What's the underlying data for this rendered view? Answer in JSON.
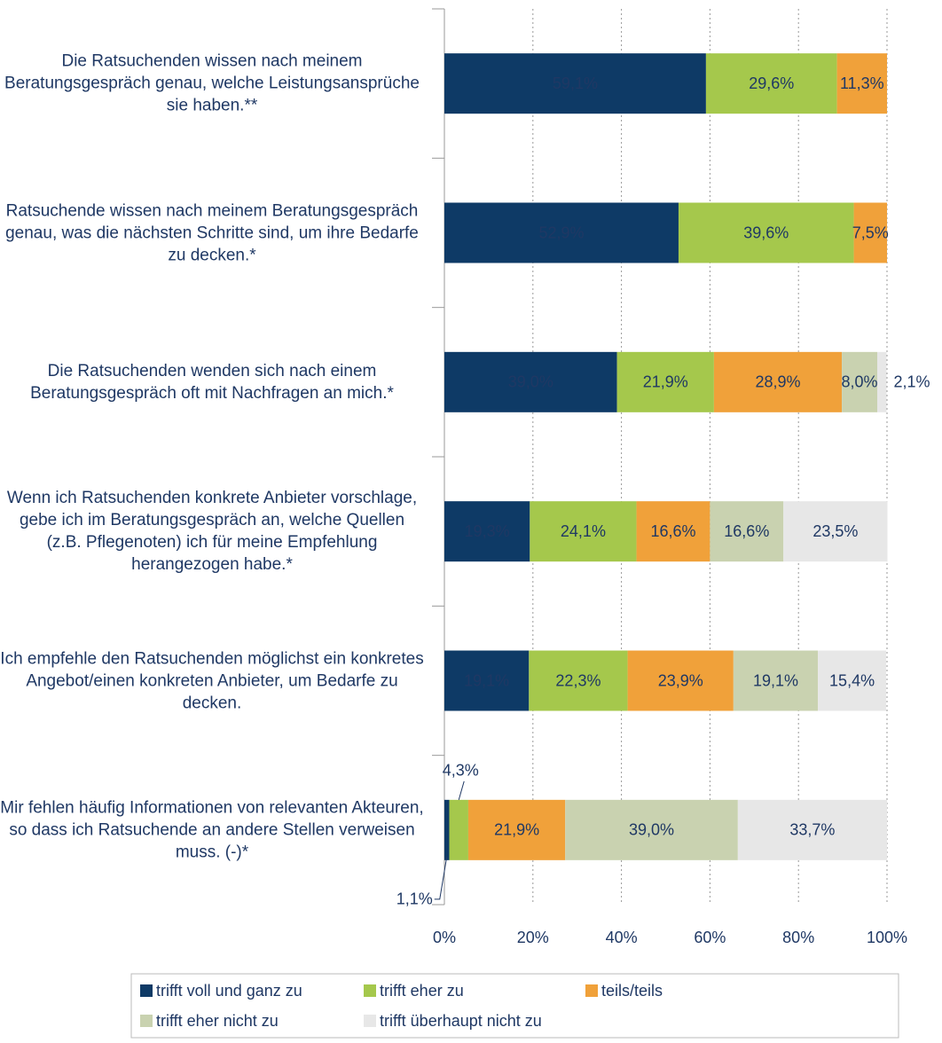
{
  "chart_data": {
    "type": "stacked-bar-horizontal",
    "categories": [
      "Die Ratsuchenden wissen nach meinem Beratungsgespräch genau, welche Leistungsansprüche sie haben.**",
      "Ratsuchende wissen nach meinem Beratungsgespräch genau, was die nächsten Schritte sind, um ihre Bedarfe zu decken.*",
      "Die Ratsuchenden wenden sich nach einem Beratungsgespräch oft mit Nachfragen an mich.*",
      "Wenn ich Ratsuchenden konkrete Anbieter vorschlage, gebe ich im Beratungsgespräch an, welche Quellen (z.B. Pflegenoten) ich für meine Empfehlung herangezogen habe.*",
      "Ich empfehle den Ratsuchenden möglichst ein konkretes Angebot/einen konkreten Anbieter, um Bedarfe zu decken.",
      "Mir fehlen häufig Informationen von relevanten Akteuren, so dass ich Ratsuchende an andere Stellen verweisen muss. (-)*"
    ],
    "series": [
      {
        "name": "trifft voll und ganz zu",
        "color": "#0e3a66",
        "values": [
          59.1,
          52.9,
          39.0,
          19.3,
          19.1,
          1.1
        ],
        "value_labels": [
          "59,1%",
          "52,9%",
          "39,0%",
          "19,3%",
          "19,1%",
          "1,1%"
        ]
      },
      {
        "name": "trifft eher zu",
        "color": "#a5c84c",
        "values": [
          29.6,
          39.6,
          21.9,
          24.1,
          22.3,
          4.3
        ],
        "value_labels": [
          "29,6%",
          "39,6%",
          "21,9%",
          "24,1%",
          "22,3%",
          "4,3%"
        ]
      },
      {
        "name": "teils/teils",
        "color": "#f0a13a",
        "values": [
          11.3,
          7.5,
          28.9,
          16.6,
          23.9,
          21.9
        ],
        "value_labels": [
          "11,3%",
          "7,5%",
          "28,9%",
          "16,6%",
          "23,9%",
          "21,9%"
        ]
      },
      {
        "name": "trifft eher nicht zu",
        "color": "#c9d2b0",
        "values": [
          null,
          null,
          8.0,
          16.6,
          19.1,
          39.0
        ],
        "value_labels": [
          null,
          null,
          "8,0%",
          "16,6%",
          "19,1%",
          "39,0%"
        ]
      },
      {
        "name": "trifft überhaupt nicht zu",
        "color": "#e7e7e7",
        "values": [
          null,
          null,
          2.1,
          23.5,
          15.4,
          33.7
        ],
        "value_labels": [
          null,
          null,
          "2,1%",
          "23,5%",
          "15,4%",
          "33,7%"
        ]
      }
    ],
    "xlim": [
      0,
      100
    ],
    "xticks": [
      {
        "value": 0,
        "label": "0%"
      },
      {
        "value": 20,
        "label": "20%"
      },
      {
        "value": 40,
        "label": "40%"
      },
      {
        "value": 60,
        "label": "60%"
      },
      {
        "value": 80,
        "label": "80%"
      },
      {
        "value": 100,
        "label": "100%"
      }
    ],
    "grid": true,
    "legend": "bottom"
  }
}
